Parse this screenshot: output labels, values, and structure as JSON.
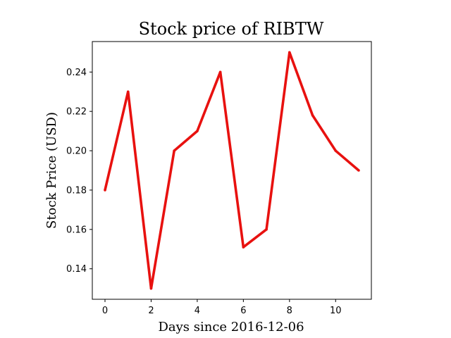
{
  "chart_data": {
    "type": "line",
    "title": "Stock price of RIBTW",
    "xlabel": "Days since 2016-12-06",
    "ylabel": "Stock Price (USD)",
    "x": [
      0,
      1,
      2,
      3,
      4,
      5,
      6,
      7,
      8,
      9,
      10,
      11
    ],
    "series": [
      {
        "values": [
          0.18,
          0.23,
          0.13,
          0.2,
          0.21,
          0.24,
          0.151,
          0.16,
          0.25,
          0.218,
          0.2,
          0.19
        ],
        "color": "#e8110f"
      }
    ],
    "xlim": [
      -0.55,
      11.55
    ],
    "ylim": [
      0.1245,
      0.2555
    ],
    "xticks": [
      0,
      2,
      4,
      6,
      8,
      10
    ],
    "xtick_labels": [
      "0",
      "2",
      "4",
      "6",
      "8",
      "10"
    ],
    "yticks": [
      0.14,
      0.16,
      0.18,
      0.2,
      0.22,
      0.24
    ],
    "ytick_labels": [
      "0.14",
      "0.16",
      "0.18",
      "0.20",
      "0.22",
      "0.24"
    ],
    "grid": false,
    "legend": "none"
  }
}
